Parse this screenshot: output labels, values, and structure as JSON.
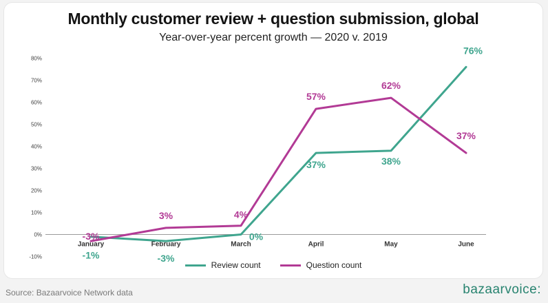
{
  "colors": {
    "review": "#3fa58e",
    "question": "#b23a95"
  },
  "chart_data": {
    "type": "line",
    "title": "Monthly customer review + question submission, global",
    "subtitle": "Year-over-year percent growth — 2020 v. 2019",
    "categories": [
      "January",
      "February",
      "March",
      "April",
      "May",
      "June"
    ],
    "ylim": [
      -10,
      80
    ],
    "yticks": [
      "-10%",
      "0%",
      "10%",
      "20%",
      "30%",
      "40%",
      "50%",
      "60%",
      "70%",
      "80%"
    ],
    "grid": false,
    "legend_position": "bottom",
    "series": [
      {
        "name": "Review count",
        "values": [
          -1,
          -3,
          0,
          37,
          38,
          76
        ],
        "labels": [
          "-1%",
          "-3%",
          "0%",
          "37%",
          "38%",
          "76%"
        ]
      },
      {
        "name": "Question count",
        "values": [
          -3,
          3,
          4,
          57,
          62,
          37
        ],
        "labels": [
          "-3%",
          "3%",
          "4%",
          "57%",
          "62%",
          "37%"
        ]
      }
    ]
  },
  "footer": {
    "source": "Source: Bazaarvoice Network data",
    "brand": "bazaarvoice:"
  }
}
